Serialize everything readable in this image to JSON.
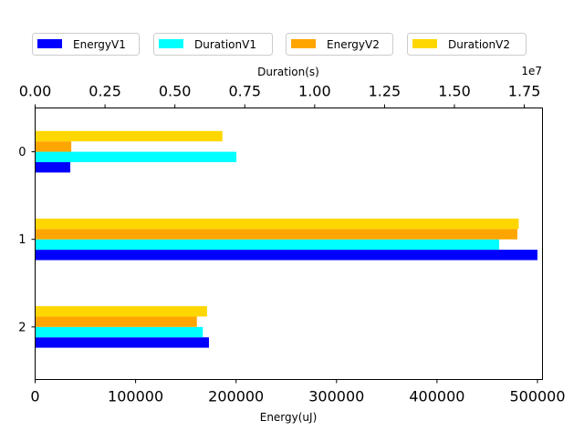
{
  "chart_data": {
    "type": "bar",
    "orientation": "horizontal",
    "categories": [
      "0",
      "1",
      "2"
    ],
    "series": [
      {
        "name": "EnergyV1",
        "axis": "bottom",
        "color": "#0000ff",
        "values": [
          35000,
          500000,
          173000
        ]
      },
      {
        "name": "DurationV1",
        "axis": "top",
        "color": "#00ffff",
        "values": [
          7200000,
          16600000,
          6000000
        ]
      },
      {
        "name": "EnergyV2",
        "axis": "bottom",
        "color": "#ffa500",
        "values": [
          36000,
          480000,
          161000
        ]
      },
      {
        "name": "DurationV2",
        "axis": "top",
        "color": "#ffd700",
        "values": [
          6700000,
          17300000,
          6150000
        ]
      }
    ],
    "xlabel": "Energy(uJ)",
    "x_ticks": [
      "0",
      "100000",
      "200000",
      "300000",
      "400000",
      "500000"
    ],
    "xlim": [
      0,
      505000
    ],
    "top_xlabel": "Duration(s)",
    "top_x_ticks": [
      "0.00",
      "0.25",
      "0.50",
      "0.75",
      "1.00",
      "1.25",
      "1.50",
      "1.75"
    ],
    "top_x_offset": "1e7",
    "top_xlim": [
      0,
      18150000
    ],
    "legend_position": "top",
    "grid": false
  }
}
